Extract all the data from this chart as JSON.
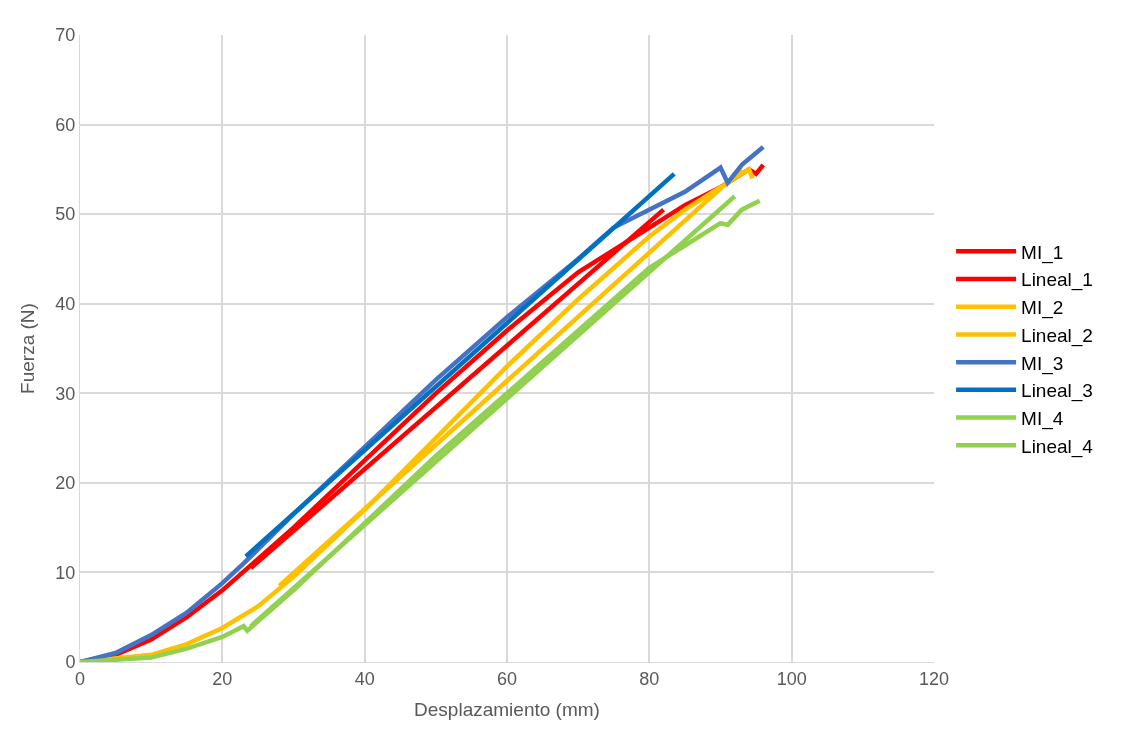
{
  "chart_data": {
    "type": "line",
    "xlabel": "Desplazamiento (mm)",
    "ylabel": "Fuerza (N)",
    "xlim": [
      0,
      120
    ],
    "xticks": [
      0,
      20,
      40,
      60,
      80,
      100,
      120
    ],
    "ylim": [
      0,
      70
    ],
    "yticks": [
      0,
      10,
      20,
      30,
      40,
      50,
      60,
      70
    ],
    "grid": true,
    "legend": "right",
    "marker": "none",
    "line_style": "solid",
    "series": [
      {
        "name": "MI_1",
        "color": "#ff0000",
        "x": [
          0,
          5,
          10,
          15,
          20,
          25,
          30,
          40,
          50,
          60,
          70,
          80,
          85,
          90,
          94,
          95,
          96
        ],
        "values": [
          0,
          0.8,
          2.5,
          5,
          8,
          11.5,
          15,
          22.5,
          30,
          37,
          43.5,
          48.5,
          51,
          53,
          55,
          54.5,
          55.5
        ]
      },
      {
        "name": "Lineal_1",
        "color": "#ff0000",
        "x": [
          24,
          82
        ],
        "values": [
          10.5,
          50.5
        ]
      },
      {
        "name": "MI_2",
        "color": "#ffc000",
        "x": [
          0,
          10,
          15,
          20,
          25,
          30,
          40,
          50,
          60,
          70,
          80,
          85,
          90,
          94,
          94.5
        ],
        "values": [
          0,
          0.8,
          2,
          3.8,
          6.2,
          9.5,
          17,
          25,
          33,
          40.5,
          47.5,
          50.5,
          53,
          55,
          54
        ]
      },
      {
        "name": "Lineal_2",
        "color": "#ffc000",
        "x": [
          28,
          93
        ],
        "values": [
          8.5,
          55
        ]
      },
      {
        "name": "MI_3",
        "color": "#4472c4",
        "x": [
          0,
          5,
          10,
          15,
          20,
          23,
          30,
          40,
          50,
          60,
          70,
          75,
          80,
          85,
          90,
          91,
          93,
          96
        ],
        "values": [
          0,
          1,
          3,
          5.5,
          8.8,
          11,
          16.5,
          24,
          31.5,
          38.5,
          45,
          48.5,
          50.5,
          52.5,
          55.2,
          53.5,
          55.5,
          57.5
        ]
      },
      {
        "name": "Lineal_3",
        "color": "#0070c0",
        "x": [
          23.3,
          83.5
        ],
        "values": [
          11.8,
          54.5
        ]
      },
      {
        "name": "MI_4",
        "color": "#92d050",
        "x": [
          0,
          10,
          15,
          20,
          23,
          23.5,
          30,
          40,
          50,
          60,
          70,
          80,
          85,
          90,
          91,
          93,
          95.5
        ],
        "values": [
          0,
          0.5,
          1.5,
          2.8,
          4,
          3.5,
          8,
          15.5,
          23,
          30,
          37,
          44,
          46.5,
          49,
          48.8,
          50.5,
          51.5
        ]
      },
      {
        "name": "Lineal_4",
        "color": "#92d050",
        "x": [
          24,
          92
        ],
        "values": [
          4,
          52
        ]
      }
    ]
  }
}
